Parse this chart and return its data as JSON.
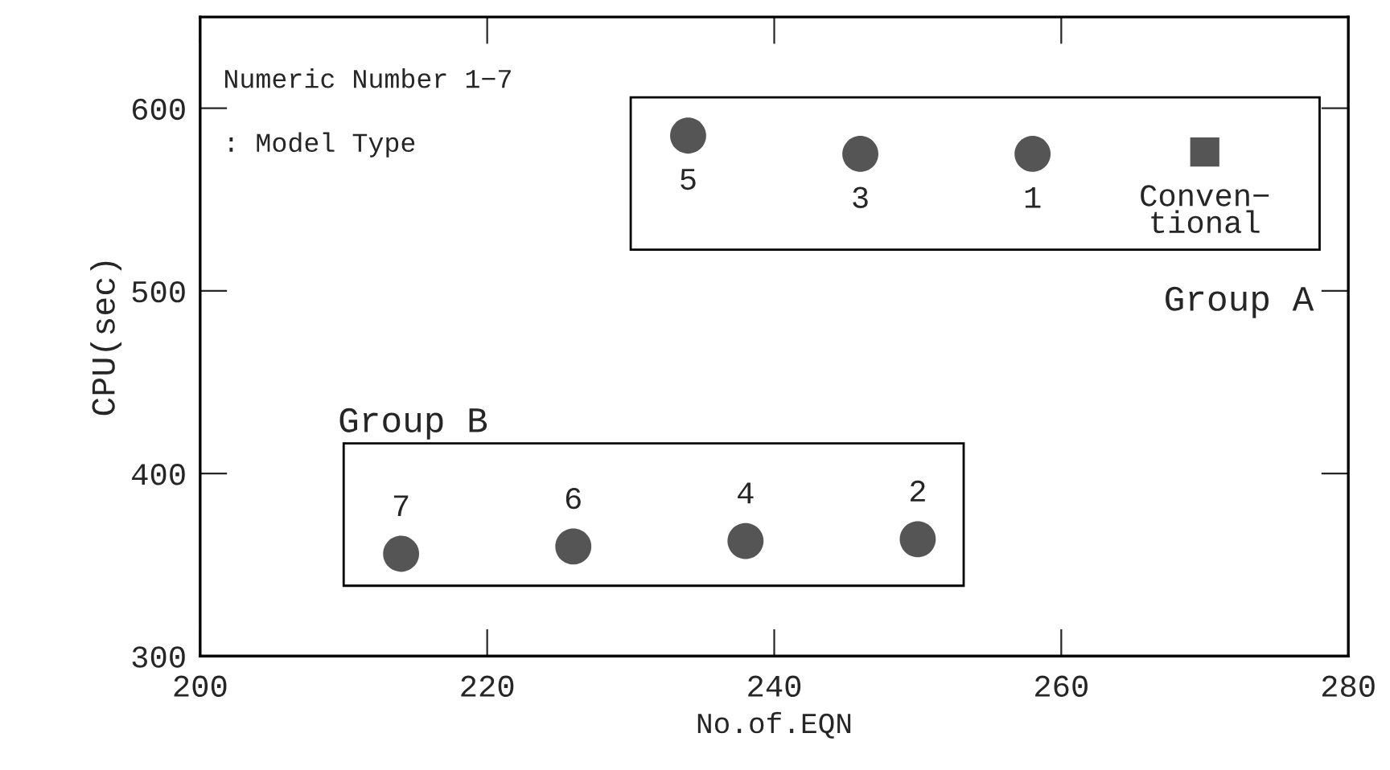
{
  "chart_data": {
    "type": "scatter",
    "xlabel": "No.of.EQN",
    "ylabel": "CPU(sec)",
    "xlim": [
      200,
      280
    ],
    "xticks": [
      200,
      220,
      240,
      260,
      280
    ],
    "ylim": [
      300,
      650
    ],
    "yticks": [
      300,
      400,
      500,
      600
    ],
    "grid": false,
    "series": [
      {
        "color": "#555555",
        "marker": "circle",
        "x": [
          234,
          246,
          258,
          214,
          226,
          238,
          250
        ],
        "values": [
          585,
          575,
          575,
          356,
          360,
          363,
          364
        ]
      },
      {
        "color": "#555555",
        "marker": "square",
        "x": [
          270
        ],
        "values": [
          576
        ]
      }
    ],
    "annotations": [
      "Numeric Number 1−7",
      ": Model Type",
      "Group A",
      "Group B",
      {
        "text": "5",
        "x": 234,
        "y": 585
      },
      {
        "text": "3",
        "x": 246,
        "y": 575
      },
      {
        "text": "1",
        "x": 258,
        "y": 575
      },
      {
        "text": "Conven−\ntional",
        "x": 270,
        "y": 576
      },
      {
        "text": "7",
        "x": 214,
        "y": 356
      },
      {
        "text": "6",
        "x": 226,
        "y": 360
      },
      {
        "text": "4",
        "x": 238,
        "y": 363
      },
      {
        "text": "2",
        "x": 250,
        "y": 364
      }
    ]
  }
}
